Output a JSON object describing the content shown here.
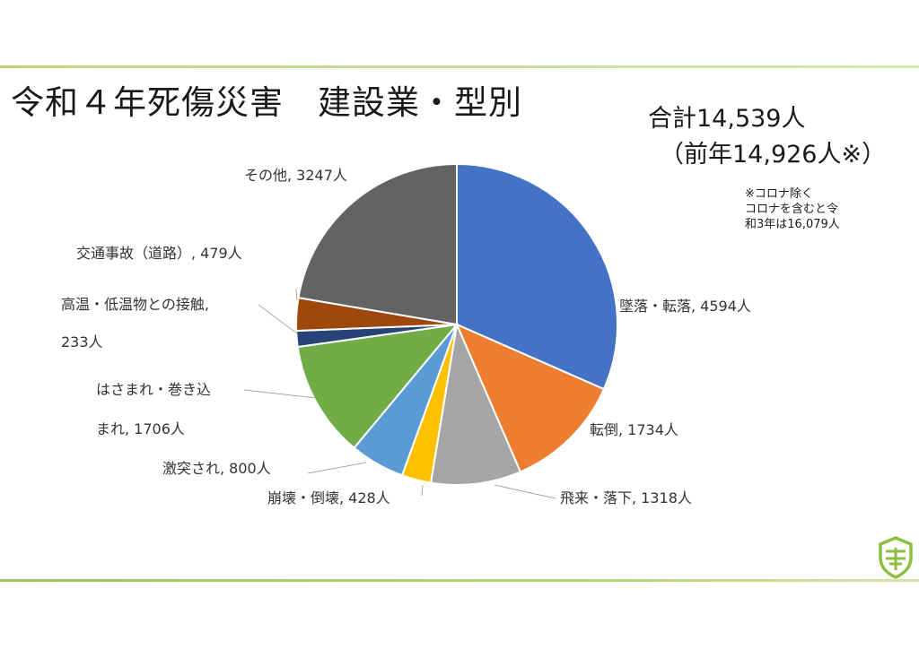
{
  "slide": {
    "title": "令和４年死傷災害　建設業・型別",
    "total": "合計14,539人",
    "previous": "（前年14,926人※）",
    "note": [
      "※コロナ除く",
      "コロナを含むと令",
      "和3年は16,079人"
    ]
  },
  "colors": {
    "accent_line": "#9dc35a"
  },
  "chart_data": {
    "type": "pie",
    "title": "",
    "slices": [
      {
        "label": "墜落・転落",
        "value": 4594,
        "color": "#4472c4",
        "label_lines": [
          "墜落・転落, 4594人"
        ]
      },
      {
        "label": "転倒",
        "value": 1734,
        "color": "#ed7d31",
        "label_lines": [
          "転倒, 1734人"
        ]
      },
      {
        "label": "飛来・落下",
        "value": 1318,
        "color": "#a5a5a5",
        "label_lines": [
          "飛来・落下, 1318人"
        ]
      },
      {
        "label": "崩壊・倒壊",
        "value": 428,
        "color": "#ffc000",
        "label_lines": [
          "崩壊・倒壊, 428人"
        ]
      },
      {
        "label": "激突され",
        "value": 800,
        "color": "#5b9bd5",
        "label_lines": [
          "激突され, 800人"
        ]
      },
      {
        "label": "はさまれ・巻き込まれ",
        "value": 1706,
        "color": "#70ad47",
        "label_lines": [
          "はさまれ・巻き込",
          "まれ, 1706人"
        ]
      },
      {
        "label": "高温・低温物との接触",
        "value": 233,
        "color": "#264478",
        "label_lines": [
          "高温・低温物との接触,",
          "233人"
        ]
      },
      {
        "label": "交通事故（道路）",
        "value": 479,
        "color": "#9e480e",
        "label_lines": [
          "交通事故（道路）, 479人"
        ]
      },
      {
        "label": "その他",
        "value": 3247,
        "color": "#636363",
        "label_lines": [
          "その他, 3247人"
        ]
      }
    ]
  }
}
